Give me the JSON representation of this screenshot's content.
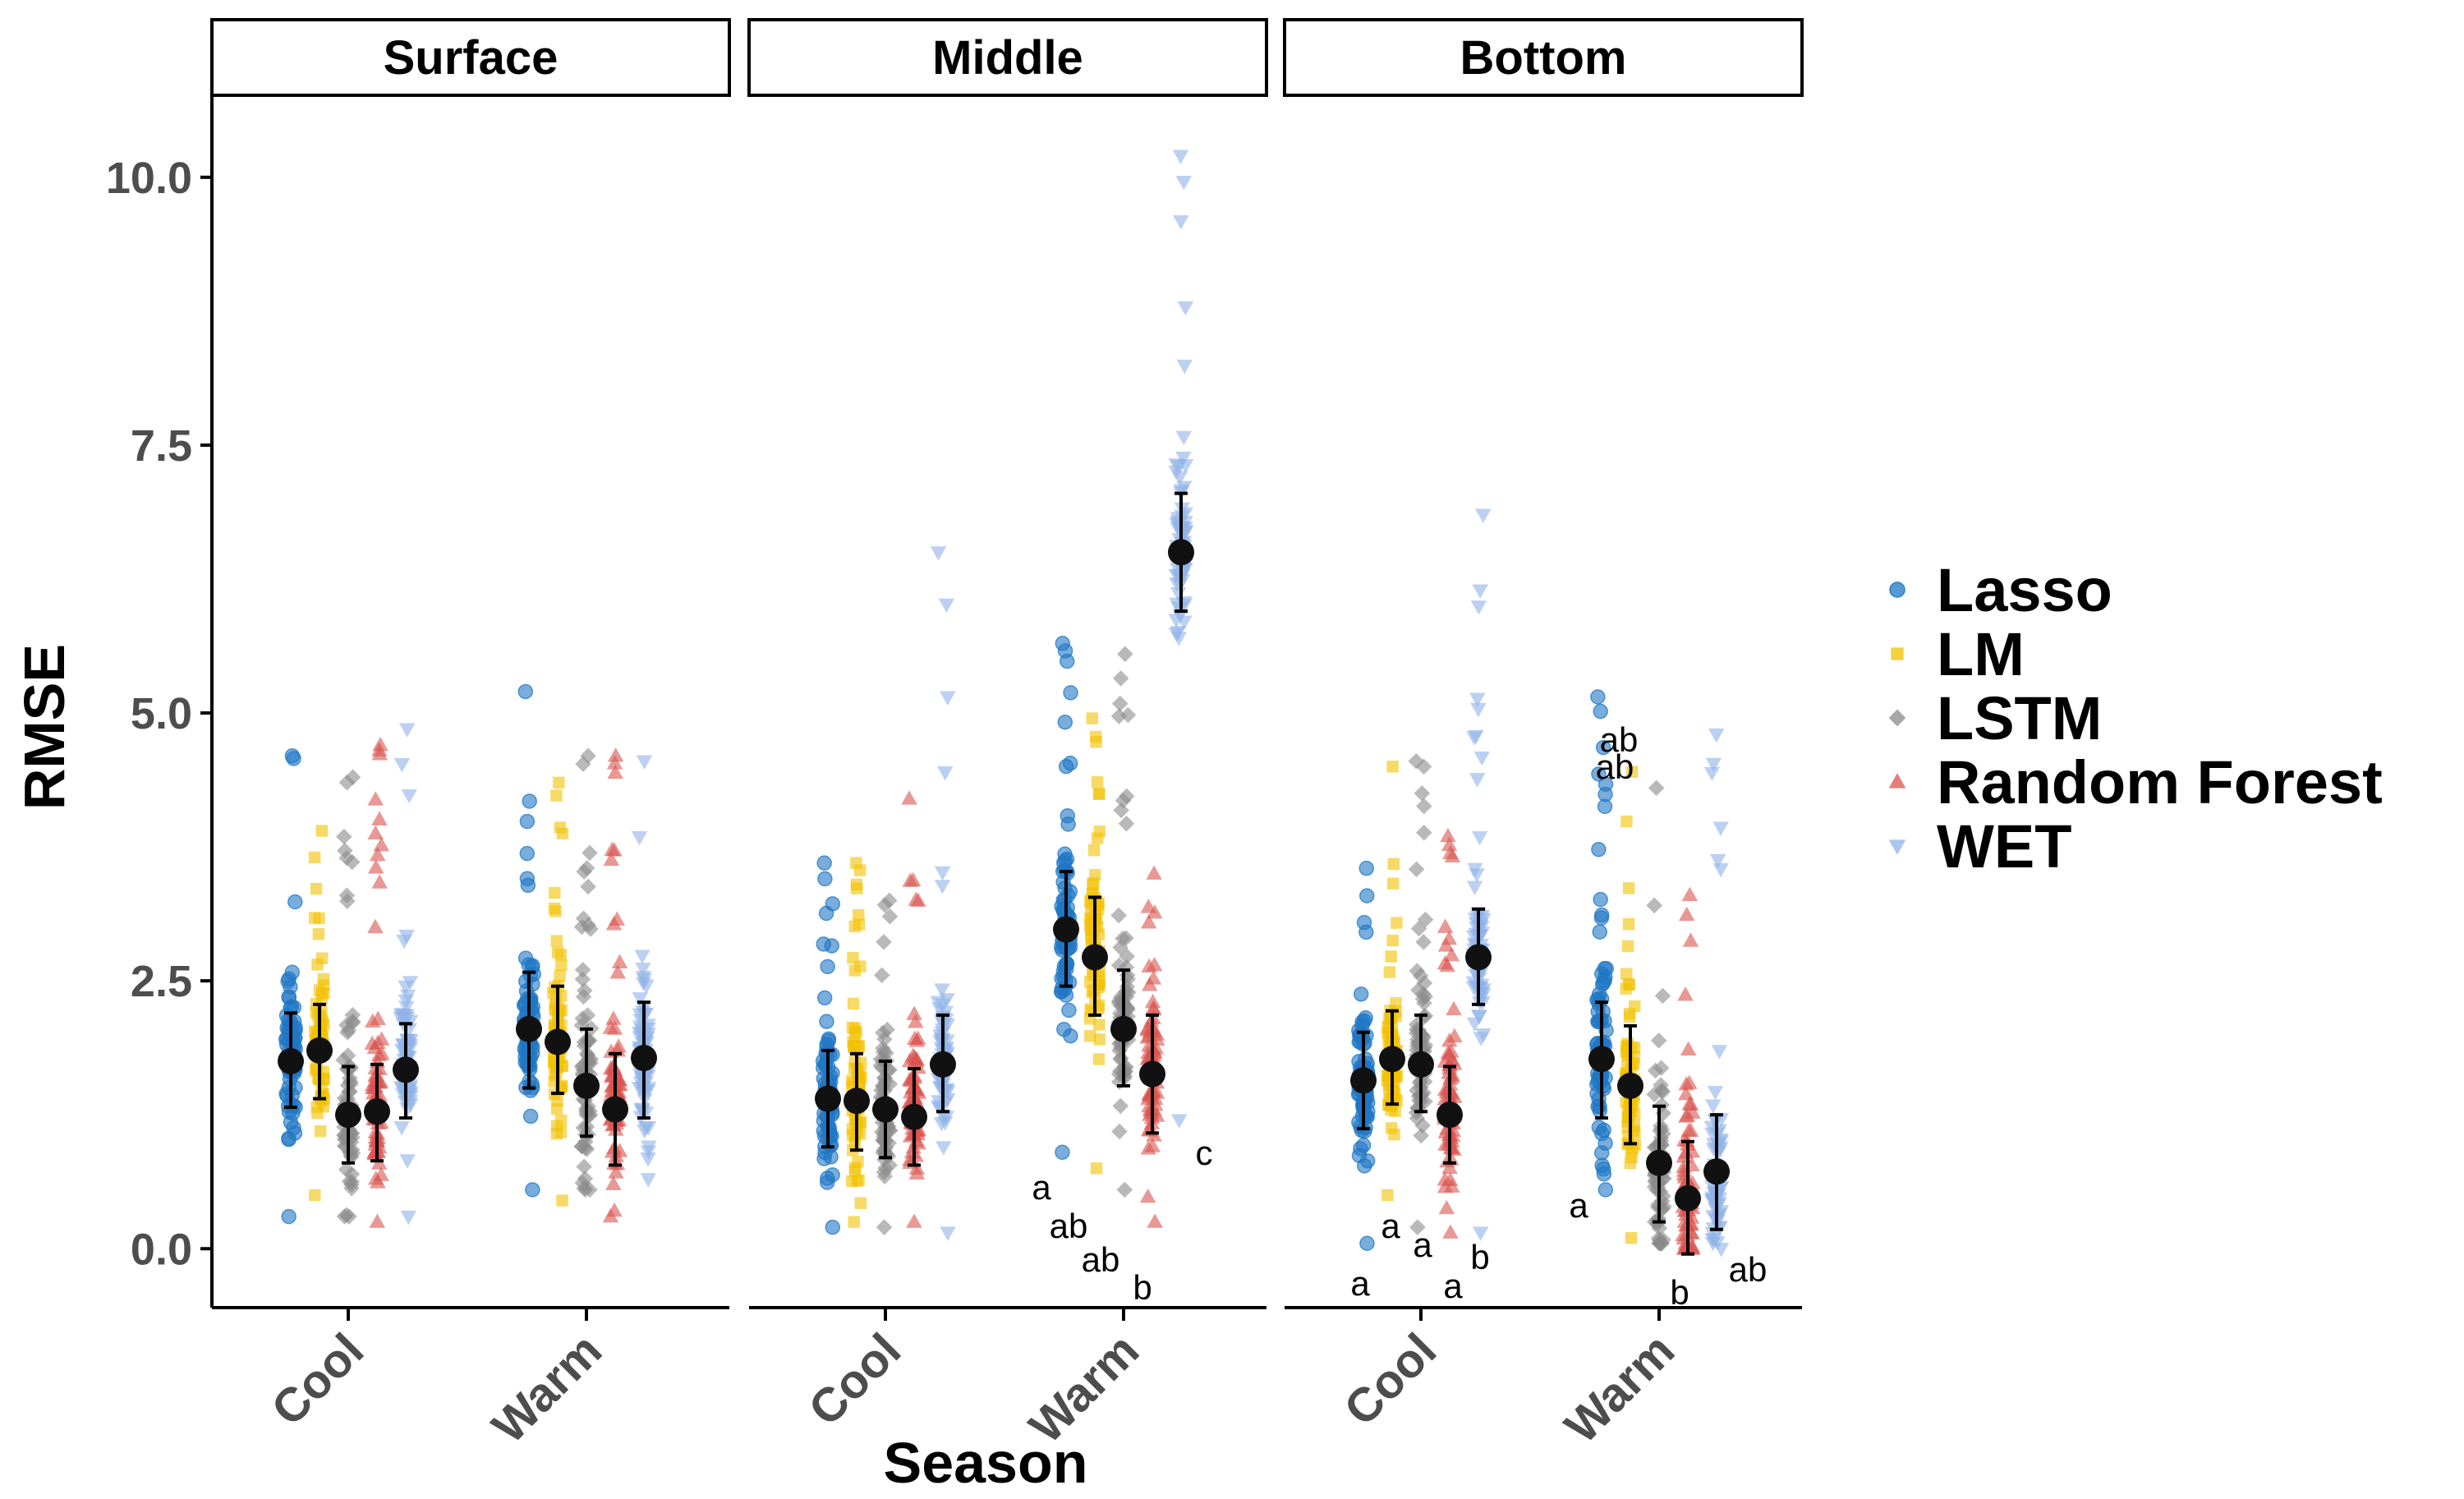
{
  "chart_data": {
    "type": "scatter",
    "facets": [
      "Surface",
      "Middle",
      "Bottom"
    ],
    "categories": [
      "Cool",
      "Warm"
    ],
    "xlabel": "Season",
    "ylabel": "RMSE",
    "ylim": [
      -0.55,
      10.75
    ],
    "yticks": [
      0.0,
      2.5,
      5.0,
      7.5,
      10.0
    ],
    "ytick_labels": [
      "0.0",
      "2.5",
      "5.0",
      "7.5",
      "10.0"
    ],
    "legend_position": "right",
    "grid": false,
    "series": [
      {
        "name": "Lasso",
        "color": "#1f77c4",
        "shape": "circle"
      },
      {
        "name": "LM",
        "color": "#f2c200",
        "shape": "square"
      },
      {
        "name": "LSTM",
        "color": "#8a8a8a",
        "shape": "diamond"
      },
      {
        "name": "Random Forest",
        "color": "#d9534f",
        "shape": "triangle-up"
      },
      {
        "name": "WET",
        "color": "#8fb3e8",
        "shape": "triangle-down"
      }
    ],
    "summary": [
      {
        "facet": "Surface",
        "season": "Cool",
        "series": "Lasso",
        "mean": 1.75,
        "low": 1.32,
        "high": 2.2,
        "min": 0.3,
        "max": 4.6,
        "letter": ""
      },
      {
        "facet": "Surface",
        "season": "Cool",
        "series": "LM",
        "mean": 1.85,
        "low": 1.4,
        "high": 2.28,
        "min": 0.5,
        "max": 3.9,
        "letter": ""
      },
      {
        "facet": "Surface",
        "season": "Cool",
        "series": "LSTM",
        "mean": 1.25,
        "low": 0.8,
        "high": 1.7,
        "min": 0.3,
        "max": 4.4,
        "letter": ""
      },
      {
        "facet": "Surface",
        "season": "Cool",
        "series": "Random Forest",
        "mean": 1.28,
        "low": 0.82,
        "high": 1.72,
        "min": 0.25,
        "max": 4.7,
        "letter": ""
      },
      {
        "facet": "Surface",
        "season": "Cool",
        "series": "WET",
        "mean": 1.67,
        "low": 1.22,
        "high": 2.1,
        "min": 0.3,
        "max": 4.85,
        "letter": ""
      },
      {
        "facet": "Surface",
        "season": "Warm",
        "series": "Lasso",
        "mean": 2.05,
        "low": 1.5,
        "high": 2.58,
        "min": 0.55,
        "max": 5.2,
        "letter": ""
      },
      {
        "facet": "Surface",
        "season": "Warm",
        "series": "LM",
        "mean": 1.93,
        "low": 1.45,
        "high": 2.45,
        "min": 0.45,
        "max": 4.35,
        "letter": ""
      },
      {
        "facet": "Surface",
        "season": "Warm",
        "series": "LSTM",
        "mean": 1.52,
        "low": 1.05,
        "high": 2.05,
        "min": 0.55,
        "max": 4.6,
        "letter": ""
      },
      {
        "facet": "Surface",
        "season": "Warm",
        "series": "Random Forest",
        "mean": 1.3,
        "low": 0.78,
        "high": 1.82,
        "min": 0.3,
        "max": 4.6,
        "letter": ""
      },
      {
        "facet": "Surface",
        "season": "Warm",
        "series": "WET",
        "mean": 1.78,
        "low": 1.22,
        "high": 2.3,
        "min": 0.65,
        "max": 4.55,
        "letter": ""
      },
      {
        "facet": "Middle",
        "season": "Cool",
        "series": "Lasso",
        "mean": 1.4,
        "low": 0.95,
        "high": 1.85,
        "min": 0.2,
        "max": 3.6,
        "letter": ""
      },
      {
        "facet": "Middle",
        "season": "Cool",
        "series": "LM",
        "mean": 1.38,
        "low": 0.92,
        "high": 1.82,
        "min": 0.25,
        "max": 3.6,
        "letter": ""
      },
      {
        "facet": "Middle",
        "season": "Cool",
        "series": "LSTM",
        "mean": 1.3,
        "low": 0.85,
        "high": 1.75,
        "min": 0.2,
        "max": 3.25,
        "letter": ""
      },
      {
        "facet": "Middle",
        "season": "Cool",
        "series": "Random Forest",
        "mean": 1.23,
        "low": 0.78,
        "high": 1.68,
        "min": 0.25,
        "max": 4.2,
        "letter": ""
      },
      {
        "facet": "Middle",
        "season": "Cool",
        "series": "WET",
        "mean": 1.72,
        "low": 1.28,
        "high": 2.18,
        "min": 0.15,
        "max": 6.5,
        "letter": ""
      },
      {
        "facet": "Middle",
        "season": "Warm",
        "series": "Lasso",
        "mean": 2.98,
        "low": 2.45,
        "high": 3.52,
        "min": 0.9,
        "max": 5.65,
        "letter": "a"
      },
      {
        "facet": "Middle",
        "season": "Warm",
        "series": "LM",
        "mean": 2.72,
        "low": 2.18,
        "high": 3.28,
        "min": 0.75,
        "max": 4.95,
        "letter": "ab"
      },
      {
        "facet": "Middle",
        "season": "Warm",
        "series": "LSTM",
        "mean": 2.05,
        "low": 1.52,
        "high": 2.6,
        "min": 0.55,
        "max": 5.55,
        "letter": "ab"
      },
      {
        "facet": "Middle",
        "season": "Warm",
        "series": "Random Forest",
        "mean": 1.63,
        "low": 1.08,
        "high": 2.18,
        "min": 0.25,
        "max": 3.5,
        "letter": "b"
      },
      {
        "facet": "Middle",
        "season": "Warm",
        "series": "WET",
        "mean": 6.5,
        "low": 5.95,
        "high": 7.05,
        "min": 1.2,
        "max": 10.2,
        "letter": "c"
      },
      {
        "facet": "Bottom",
        "season": "Cool",
        "series": "Lasso",
        "mean": 1.57,
        "low": 1.12,
        "high": 2.02,
        "min": 0.05,
        "max": 3.55,
        "letter": "a"
      },
      {
        "facet": "Bottom",
        "season": "Cool",
        "series": "LM",
        "mean": 1.77,
        "low": 1.35,
        "high": 2.22,
        "min": 0.5,
        "max": 4.5,
        "letter": "a"
      },
      {
        "facet": "Bottom",
        "season": "Cool",
        "series": "LSTM",
        "mean": 1.72,
        "low": 1.28,
        "high": 2.18,
        "min": 0.2,
        "max": 4.55,
        "letter": "a"
      },
      {
        "facet": "Bottom",
        "season": "Cool",
        "series": "Random Forest",
        "mean": 1.25,
        "low": 0.8,
        "high": 1.7,
        "min": 0.15,
        "max": 3.85,
        "letter": "a"
      },
      {
        "facet": "Bottom",
        "season": "Cool",
        "series": "WET",
        "mean": 2.72,
        "low": 2.28,
        "high": 3.17,
        "min": 0.15,
        "max": 6.85,
        "letter": "b"
      },
      {
        "facet": "Bottom",
        "season": "Warm",
        "series": "Lasso",
        "mean": 1.77,
        "low": 1.22,
        "high": 2.3,
        "min": 0.55,
        "max": 5.15,
        "letter": "a"
      },
      {
        "facet": "Bottom",
        "season": "Warm",
        "series": "LM",
        "mean": 1.52,
        "low": 0.98,
        "high": 2.08,
        "min": 0.1,
        "max": 4.45,
        "letter": "ab"
      },
      {
        "facet": "Bottom",
        "season": "Warm",
        "series": "LSTM",
        "mean": 0.8,
        "low": 0.25,
        "high": 1.33,
        "min": 0.05,
        "max": 4.3,
        "letter": "ab"
      },
      {
        "facet": "Bottom",
        "season": "Warm",
        "series": "Random Forest",
        "mean": 0.47,
        "low": -0.05,
        "high": 1.0,
        "min": 0.0,
        "max": 3.3,
        "letter": "b"
      },
      {
        "facet": "Bottom",
        "season": "Warm",
        "series": "WET",
        "mean": 0.72,
        "low": 0.18,
        "high": 1.25,
        "min": 0.0,
        "max": 4.8,
        "letter": "ab"
      }
    ]
  }
}
